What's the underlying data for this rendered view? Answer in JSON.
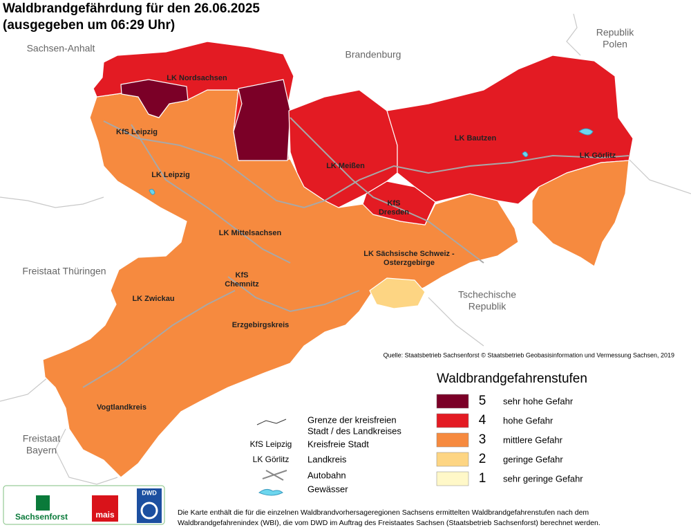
{
  "title": [
    "Waldbrandgefährdung  für den  26.06.2025",
    "(ausgegeben um 06:29 Uhr)"
  ],
  "neighbors": [
    [
      "Sachsen-Anhalt"
    ],
    [
      "Brandenburg"
    ],
    [
      "Republik",
      "Polen"
    ],
    [
      "Freistaat Thüringen"
    ],
    [
      "Tschechische",
      "Republik"
    ],
    [
      "Freistaat",
      "Bayern"
    ]
  ],
  "map": {
    "zones": [
      {
        "level": 3
      },
      {
        "level": 4
      },
      {
        "level": 5
      },
      {
        "level": 5
      },
      {
        "level": 4
      },
      {
        "level": 4
      },
      {
        "level": 4
      },
      {
        "level": 3
      },
      {
        "level": 2
      }
    ],
    "labels": [
      [
        "LK Nordsachsen"
      ],
      [
        "KfS Leipzig"
      ],
      [
        "LK Leipzig"
      ],
      [
        "LK Meißen"
      ],
      [
        "LK Bautzen"
      ],
      [
        "LK Görlitz"
      ],
      [
        "KfS",
        "Dresden"
      ],
      [
        "LK Mittelsachsen"
      ],
      [
        "LK Sächsische Schweiz -",
        "Osterzgebirge"
      ],
      [
        "KfS",
        "Chemnitz"
      ],
      [
        "LK Zwickau"
      ],
      [
        "Erzgebirgskreis"
      ],
      [
        "Vogtlandkreis"
      ]
    ]
  },
  "source": "Quelle: Staatsbetrieb Sachsenforst  © Staatsbetrieb Geobasisinformation und Vermessung Sachsen, 2019",
  "legend": {
    "title": "Waldbrandgefahrenstufen",
    "levels": [
      {
        "value": 5,
        "label": "sehr hohe Gefahr",
        "color": "#7b0027"
      },
      {
        "value": 4,
        "label": "hohe Gefahr",
        "color": "#e31b23"
      },
      {
        "value": 3,
        "label": "mittlere Gefahr",
        "color": "#f68a3f"
      },
      {
        "value": 2,
        "label": "geringe Gefahr",
        "color": "#fdd583"
      },
      {
        "value": 1,
        "label": "sehr geringe Gefahr",
        "color": "#fff8c8"
      }
    ]
  },
  "symbols": [
    {
      "label": [
        "Grenze der kreisfreien",
        "Stadt / des Landkreises"
      ]
    },
    {
      "sample": "KfS Leipzig",
      "label": [
        "Kreisfreie Stadt"
      ]
    },
    {
      "sample": "LK Görlitz",
      "label": [
        "Landkreis"
      ]
    },
    {
      "label": [
        "Autobahn"
      ]
    },
    {
      "label": [
        "Gewässer"
      ]
    }
  ],
  "logos": [
    "Sachsenforst",
    "mais",
    "DWD"
  ],
  "footnote": [
    "Die Karte enthält die für die einzelnen Waldbrandvorhersageregionen Sachsens ermittelten Waldbrandgefahrenstufen nach dem",
    "Waldbrandgefahrenindex (WBI), die vom DWD im Auftrag des Freistaates Sachsen (Staatsbetrieb Sachsenforst) berechnet werden."
  ]
}
